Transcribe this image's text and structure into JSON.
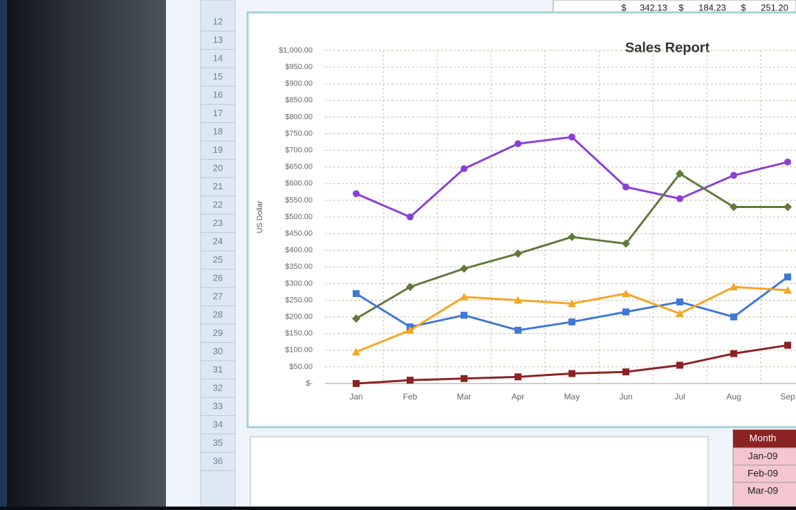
{
  "spreadsheet": {
    "top_cells": [
      "$",
      "342.13",
      "$",
      "184.23",
      "$",
      "251.20"
    ],
    "row_numbers": [
      "12",
      "13",
      "14",
      "15",
      "16",
      "17",
      "18",
      "19",
      "20",
      "21",
      "22",
      "23",
      "24",
      "25",
      "26",
      "27",
      "28",
      "29",
      "30",
      "31",
      "32",
      "33",
      "34",
      "35",
      "36"
    ],
    "table": {
      "header": "Month",
      "rows": [
        "Jan-09",
        "Feb-09",
        "Mar-09"
      ]
    }
  },
  "chart_data": {
    "type": "line",
    "title": "Sales Report",
    "y_label": "US Dollar",
    "categories": [
      "Jan",
      "Feb",
      "Mar",
      "Apr",
      "May",
      "Jun",
      "Jul",
      "Aug",
      "Sep"
    ],
    "series": [
      {
        "color": "#8a3fd6",
        "marker": "circle",
        "values": [
          570,
          500,
          645,
          720,
          740,
          590,
          555,
          625,
          665
        ]
      },
      {
        "color": "#5f7a3a",
        "marker": "diamond",
        "values": [
          195,
          290,
          345,
          390,
          440,
          420,
          630,
          530,
          530
        ]
      },
      {
        "color": "#3f78d6",
        "marker": "square",
        "values": [
          270,
          170,
          205,
          160,
          185,
          215,
          245,
          200,
          320
        ]
      },
      {
        "color": "#f5a623",
        "marker": "triangle",
        "values": [
          95,
          160,
          260,
          250,
          240,
          270,
          210,
          290,
          280
        ]
      },
      {
        "color": "#8b2323",
        "marker": "square",
        "values": [
          0,
          10,
          15,
          20,
          30,
          35,
          55,
          90,
          115
        ]
      }
    ],
    "ylim": [
      0,
      1000
    ],
    "yticks": [
      {
        "value": 0,
        "label": "$-"
      },
      {
        "value": 50,
        "label": "$50.00"
      },
      {
        "value": 100,
        "label": "$100.00"
      },
      {
        "value": 150,
        "label": "$150.00"
      },
      {
        "value": 200,
        "label": "$200.00"
      },
      {
        "value": 250,
        "label": "$250.00"
      },
      {
        "value": 300,
        "label": "$300.00"
      },
      {
        "value": 350,
        "label": "$350.00"
      },
      {
        "value": 400,
        "label": "$400.00"
      },
      {
        "value": 450,
        "label": "$450.00"
      },
      {
        "value": 500,
        "label": "$500.00"
      },
      {
        "value": 550,
        "label": "$550.00"
      },
      {
        "value": 600,
        "label": "$600.00"
      },
      {
        "value": 650,
        "label": "$650.00"
      },
      {
        "value": 700,
        "label": "$700.00"
      },
      {
        "value": 750,
        "label": "$750.00"
      },
      {
        "value": 800,
        "label": "$800.00"
      },
      {
        "value": 850,
        "label": "$850.00"
      },
      {
        "value": 900,
        "label": "$900.00"
      },
      {
        "value": 950,
        "label": "$950.00"
      },
      {
        "value": 1000,
        "label": "$1,000.00"
      }
    ],
    "grid": true
  }
}
